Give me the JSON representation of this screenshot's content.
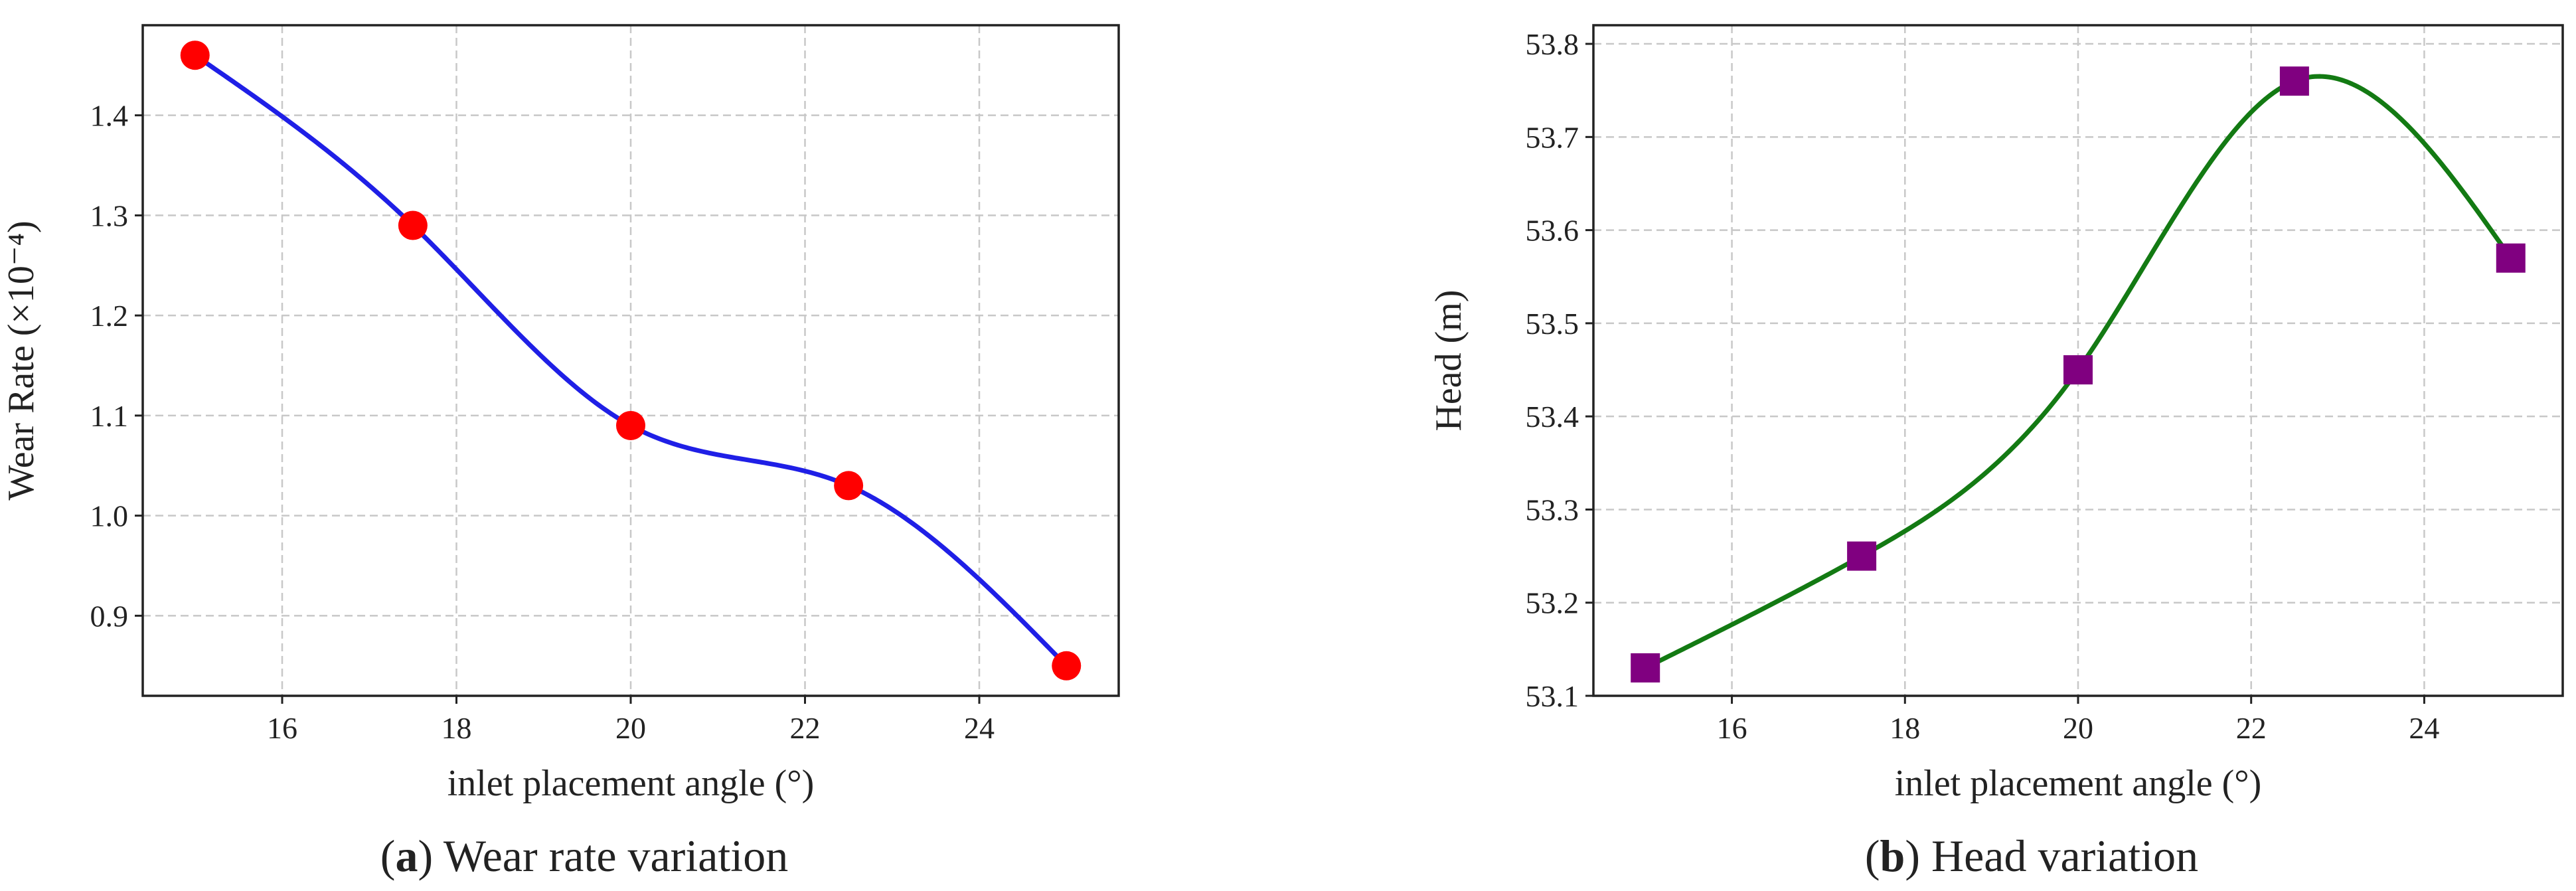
{
  "chart_data": [
    {
      "type": "line",
      "panel_letter": "a",
      "caption": "Wear rate variation",
      "xlabel": "inlet placement angle (°)",
      "ylabel": "Wear Rate (×10⁻⁴)",
      "x": [
        15,
        17.5,
        20,
        22.5,
        25
      ],
      "series": [
        {
          "values": [
            1.46,
            1.29,
            1.09,
            1.03,
            0.85
          ]
        }
      ],
      "xlim": [
        14.4,
        25.6
      ],
      "ylim": [
        0.82,
        1.49
      ],
      "xticks": [
        16,
        18,
        20,
        22,
        24
      ],
      "xtick_labels": [
        "16",
        "18",
        "20",
        "22",
        "24"
      ],
      "yticks": [
        0.9,
        1.0,
        1.1,
        1.2,
        1.3,
        1.4
      ],
      "ytick_labels": [
        "0.9",
        "1.0",
        "1.1",
        "1.2",
        "1.3",
        "1.4"
      ],
      "grid": true,
      "marker": "circle",
      "line_color": "#1f1fe6",
      "marker_color": "#ff0000",
      "smooth": true
    },
    {
      "type": "line",
      "panel_letter": "b",
      "caption": "Head variation",
      "xlabel": "inlet placement angle (°)",
      "ylabel": "Head (m)",
      "x": [
        15,
        17.5,
        20,
        22.5,
        25
      ],
      "series": [
        {
          "values": [
            53.13,
            53.25,
            53.45,
            53.76,
            53.57
          ]
        }
      ],
      "xlim": [
        14.4,
        25.6
      ],
      "ylim": [
        53.1,
        53.82
      ],
      "xticks": [
        16,
        18,
        20,
        22,
        24
      ],
      "xtick_labels": [
        "16",
        "18",
        "20",
        "22",
        "24"
      ],
      "yticks": [
        53.1,
        53.2,
        53.3,
        53.4,
        53.5,
        53.6,
        53.7,
        53.8
      ],
      "ytick_labels": [
        "53.1",
        "53.2",
        "53.3",
        "53.4",
        "53.5",
        "53.6",
        "53.7",
        "53.8"
      ],
      "grid": true,
      "marker": "square",
      "line_color": "#137a13",
      "marker_color": "#800080",
      "smooth": true
    }
  ]
}
